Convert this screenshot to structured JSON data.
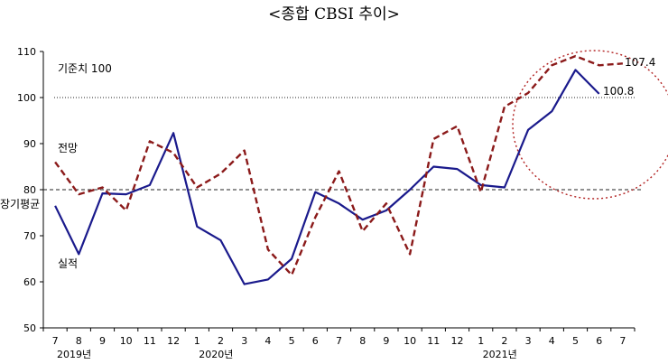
{
  "chart_data": {
    "type": "line",
    "title": "<종합 CBSI 추이>",
    "categories": [
      "7",
      "8",
      "9",
      "10",
      "11",
      "12",
      "1",
      "2",
      "3",
      "4",
      "5",
      "6",
      "7",
      "8",
      "9",
      "10",
      "11",
      "12",
      "1",
      "2",
      "3",
      "4",
      "5",
      "6",
      "7"
    ],
    "year_labels": [
      "2019년",
      "2020년",
      "2021년"
    ],
    "ylim": [
      50,
      110
    ],
    "yticks": [
      50,
      60,
      70,
      80,
      90,
      100,
      110
    ],
    "grid": false,
    "series": [
      {
        "name": "실적",
        "color": "#1a1a8c",
        "style": "solid",
        "values": [
          76.5,
          66,
          79.2,
          79,
          81,
          92.3,
          72,
          69,
          59.5,
          60.5,
          65,
          79.5,
          77,
          73.5,
          75.5,
          80,
          85,
          84.5,
          81,
          80.5,
          93,
          97,
          106,
          100.8,
          null
        ]
      },
      {
        "name": "전망",
        "color": "#8b1a1a",
        "style": "dashed",
        "values": [
          86,
          79,
          80.5,
          75.5,
          90.5,
          88,
          80.5,
          83.5,
          88.5,
          67,
          61.5,
          74,
          84,
          71,
          77,
          66,
          91,
          93.8,
          79.5,
          98,
          101,
          107,
          109,
          107,
          107.4
        ]
      }
    ],
    "reference_lines": [
      {
        "label": "기준치 100",
        "value": 100
      },
      {
        "label": "장기평균",
        "value": 80
      }
    ],
    "annotations": {
      "last_actual": "100.8",
      "last_forecast": "107.4"
    }
  }
}
